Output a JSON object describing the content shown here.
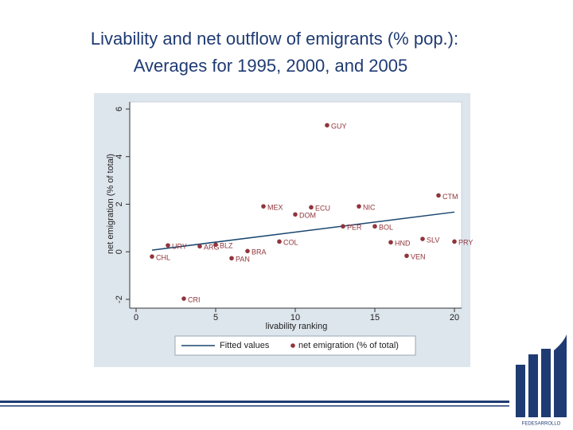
{
  "chart_data": {
    "type": "scatter",
    "title": [
      "Livability and net outflow of emigrants (% pop.):",
      "Averages for 1995, 2000, and 2005"
    ],
    "x_label": "livability ranking",
    "y_label": "net emigration  (% of total)",
    "xlim": [
      -0.4,
      20.45
    ],
    "xticks": [
      0,
      5,
      10,
      15,
      20
    ],
    "ylim": [
      -2.37,
      6.3
    ],
    "yticks": [
      -2,
      0,
      2,
      4,
      6
    ],
    "grid": false,
    "series": [
      {
        "name": "Fitted values",
        "type": "line",
        "color": "#1a476f",
        "x": [
          1,
          20
        ],
        "values": [
          0.07,
          1.67
        ]
      },
      {
        "name": "net emigration (% of total)",
        "type": "scatter",
        "color": "#90353b",
        "x": [
          12,
          19,
          8,
          14,
          11,
          10,
          13,
          15,
          18,
          20,
          16,
          9,
          2,
          4,
          5,
          7,
          1,
          6,
          17,
          3
        ],
        "values": [
          5.32,
          2.37,
          1.91,
          1.91,
          1.87,
          1.57,
          1.07,
          1.07,
          0.54,
          0.43,
          0.4,
          0.43,
          0.27,
          0.23,
          0.3,
          0.03,
          -0.2,
          -0.27,
          -0.17,
          -1.97
        ],
        "point_labels": [
          "GUY",
          "CTM",
          "MEX",
          "NIC",
          "ECU",
          "DOM",
          "PER",
          "BOL",
          "SLV",
          "PRY",
          "HND",
          "COL",
          "URY",
          "ARG",
          "BLZ",
          "BRA",
          "CHL",
          "PAN",
          "VEN",
          "CRI"
        ]
      }
    ]
  },
  "logo_text": "FEDESARROLLO"
}
